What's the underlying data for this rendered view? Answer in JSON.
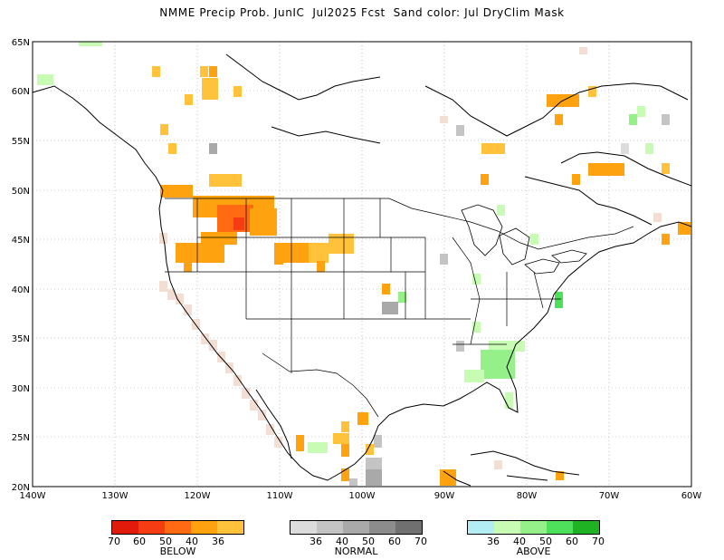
{
  "title": "NMME Precip Prob. JunIC  Jul2025 Fcst  Sand color: Jul DryClim Mask",
  "lat_labels": [
    "65N",
    "60N",
    "55N",
    "50N",
    "45N",
    "40N",
    "35N",
    "30N",
    "25N",
    "20N"
  ],
  "lon_labels": [
    "140W",
    "130W",
    "120W",
    "110W",
    "100W",
    "90W",
    "80W",
    "70W",
    "60W"
  ],
  "colors": {
    "below": [
      "#e01b0b",
      "#f53c12",
      "#ff6a12",
      "#ffa210",
      "#ffc23a"
    ],
    "normal": [
      "#dcdcdc",
      "#c4c4c4",
      "#a9a9a9",
      "#8c8c8c",
      "#707070"
    ],
    "above": [
      "#b3eef5",
      "#c8fbb4",
      "#96f08a",
      "#4fe05b",
      "#1fb323"
    ],
    "sand": "#f3ded4"
  },
  "legend": {
    "below": {
      "label": "BELOW",
      "ticks": [
        "70",
        "60",
        "50",
        "40",
        "36"
      ]
    },
    "normal": {
      "label": "NORMAL",
      "ticks": [
        "36",
        "40",
        "50",
        "60",
        "70"
      ]
    },
    "above": {
      "label": "ABOVE",
      "ticks": [
        "36",
        "40",
        "50",
        "60",
        "70"
      ]
    }
  }
}
